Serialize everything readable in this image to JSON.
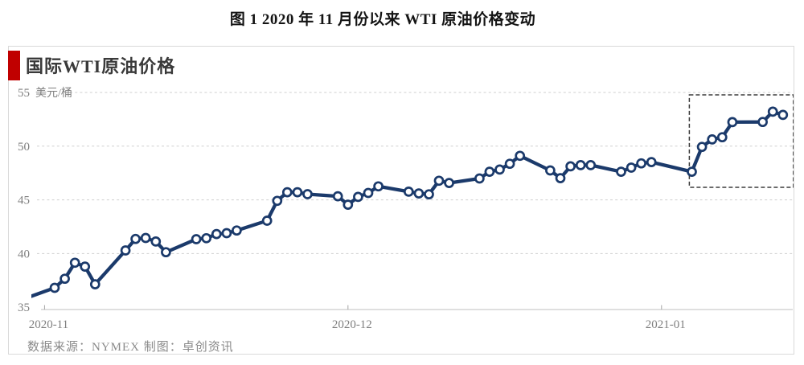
{
  "page": {
    "title": "图 1 2020 年 11 月份以来 WTI 原油价格变动"
  },
  "card": {
    "header": {
      "title": "国际WTI原油价格",
      "accent_color": "#c00000"
    },
    "footer": {
      "source": "数据来源：NYMEX 制图：卓创资讯"
    }
  },
  "chart_data": {
    "type": "line",
    "title": "国际WTI原油价格",
    "unit_label": "美元/桶",
    "ylabel": "美元/桶",
    "ylim": [
      35,
      55
    ],
    "y_ticks": [
      35,
      40,
      45,
      50,
      55
    ],
    "x_tick_labels": [
      "2020-11",
      "2020-12",
      "2021-01"
    ],
    "x_tick_dates": [
      "2020-11-01",
      "2020-12-01",
      "2021-01-01"
    ],
    "grid": "horizontal-dashed",
    "legend": "none",
    "line_color": "#1b3a6b",
    "marker_style": "open-circle",
    "grid_color": "#cfcfcf",
    "axis_color": "#bfbfbf",
    "label_color": "#7f7f7f",
    "highlight_region": {
      "style": "dashed-box",
      "color": "#3c3c3c",
      "start": "2021-01-03T18:00",
      "end": "2021-01-14T01:00",
      "value_min": 46.17,
      "value_max": 54.78
    },
    "series": [
      {
        "name": "WTI原油价格",
        "points": [
          {
            "date": "2020-10-30",
            "value": 35.79
          },
          {
            "date": "2020-11-02",
            "value": 36.81
          },
          {
            "date": "2020-11-03",
            "value": 37.66
          },
          {
            "date": "2020-11-04",
            "value": 39.15
          },
          {
            "date": "2020-11-05",
            "value": 38.79
          },
          {
            "date": "2020-11-06",
            "value": 37.14
          },
          {
            "date": "2020-11-09",
            "value": 40.29
          },
          {
            "date": "2020-11-10",
            "value": 41.36
          },
          {
            "date": "2020-11-11",
            "value": 41.45
          },
          {
            "date": "2020-11-12",
            "value": 41.12
          },
          {
            "date": "2020-11-13",
            "value": 40.13
          },
          {
            "date": "2020-11-16",
            "value": 41.34
          },
          {
            "date": "2020-11-17",
            "value": 41.43
          },
          {
            "date": "2020-11-18",
            "value": 41.82
          },
          {
            "date": "2020-11-19",
            "value": 41.9
          },
          {
            "date": "2020-11-20",
            "value": 42.15
          },
          {
            "date": "2020-11-23",
            "value": 43.06
          },
          {
            "date": "2020-11-24",
            "value": 44.91
          },
          {
            "date": "2020-11-25",
            "value": 45.71
          },
          {
            "date": "2020-11-26",
            "value": 45.71
          },
          {
            "date": "2020-11-27",
            "value": 45.53
          },
          {
            "date": "2020-11-30",
            "value": 45.34
          },
          {
            "date": "2020-12-01",
            "value": 44.55
          },
          {
            "date": "2020-12-02",
            "value": 45.28
          },
          {
            "date": "2020-12-03",
            "value": 45.64
          },
          {
            "date": "2020-12-04",
            "value": 46.26
          },
          {
            "date": "2020-12-07",
            "value": 45.76
          },
          {
            "date": "2020-12-08",
            "value": 45.6
          },
          {
            "date": "2020-12-09",
            "value": 45.52
          },
          {
            "date": "2020-12-10",
            "value": 46.78
          },
          {
            "date": "2020-12-11",
            "value": 46.57
          },
          {
            "date": "2020-12-14",
            "value": 46.99
          },
          {
            "date": "2020-12-15",
            "value": 47.62
          },
          {
            "date": "2020-12-16",
            "value": 47.82
          },
          {
            "date": "2020-12-17",
            "value": 48.36
          },
          {
            "date": "2020-12-18",
            "value": 49.1
          },
          {
            "date": "2020-12-21",
            "value": 47.74
          },
          {
            "date": "2020-12-22",
            "value": 47.02
          },
          {
            "date": "2020-12-23",
            "value": 48.12
          },
          {
            "date": "2020-12-24",
            "value": 48.23
          },
          {
            "date": "2020-12-25",
            "value": 48.23
          },
          {
            "date": "2020-12-28",
            "value": 47.62
          },
          {
            "date": "2020-12-29",
            "value": 48.0
          },
          {
            "date": "2020-12-30",
            "value": 48.4
          },
          {
            "date": "2020-12-31",
            "value": 48.52
          },
          {
            "date": "2021-01-04",
            "value": 47.62
          },
          {
            "date": "2021-01-05",
            "value": 49.93
          },
          {
            "date": "2021-01-06",
            "value": 50.63
          },
          {
            "date": "2021-01-07",
            "value": 50.83
          },
          {
            "date": "2021-01-08",
            "value": 52.24
          },
          {
            "date": "2021-01-11",
            "value": 52.25
          },
          {
            "date": "2021-01-12",
            "value": 53.21
          },
          {
            "date": "2021-01-13",
            "value": 52.91
          }
        ]
      }
    ],
    "source_note": "数据来源：NYMEX 制图：卓创资讯"
  }
}
